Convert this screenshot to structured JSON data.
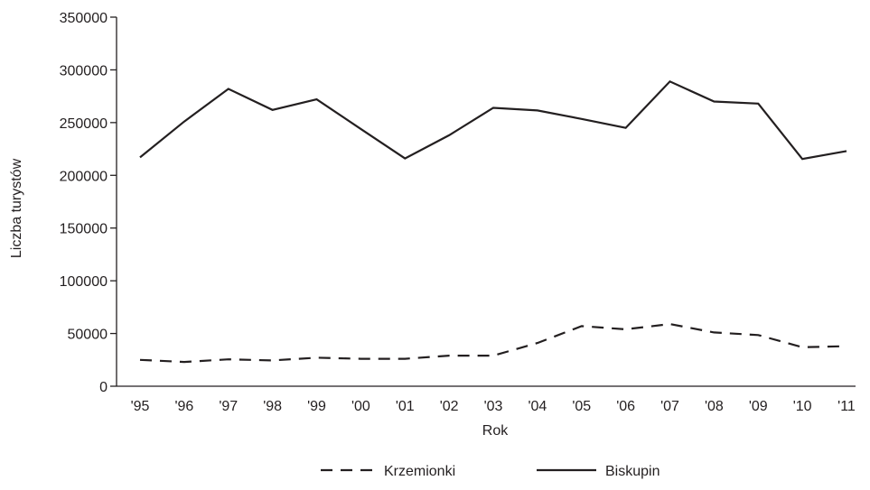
{
  "chart_data": {
    "type": "line",
    "title": "",
    "xlabel": "Rok",
    "ylabel": "Liczba turystów",
    "categories": [
      "'95",
      "'96",
      "'97",
      "'98",
      "'99",
      "'00",
      "'01",
      "'02",
      "'03",
      "'04",
      "'05",
      "'06",
      "'07",
      "'08",
      "'09",
      "'10",
      "'11"
    ],
    "y_ticks": [
      "0",
      "50000",
      "100000",
      "150000",
      "200000",
      "250000",
      "300000",
      "350000"
    ],
    "ylim": [
      0,
      350000
    ],
    "grid": false,
    "legend_position": "bottom",
    "series": [
      {
        "name": "Krzemionki",
        "style": "dashed",
        "color": "#231f20",
        "values": [
          25000,
          23000,
          25500,
          24500,
          27000,
          26000,
          26000,
          29000,
          29000,
          41000,
          57000,
          54000,
          59000,
          51000,
          48500,
          37000,
          38000
        ]
      },
      {
        "name": "Biskupin",
        "style": "solid",
        "color": "#231f20",
        "values": [
          217000,
          251000,
          282000,
          262000,
          272000,
          244000,
          216000,
          238000,
          264000,
          261500,
          253500,
          245000,
          289000,
          270000,
          268000,
          215500,
          223000
        ]
      }
    ]
  }
}
